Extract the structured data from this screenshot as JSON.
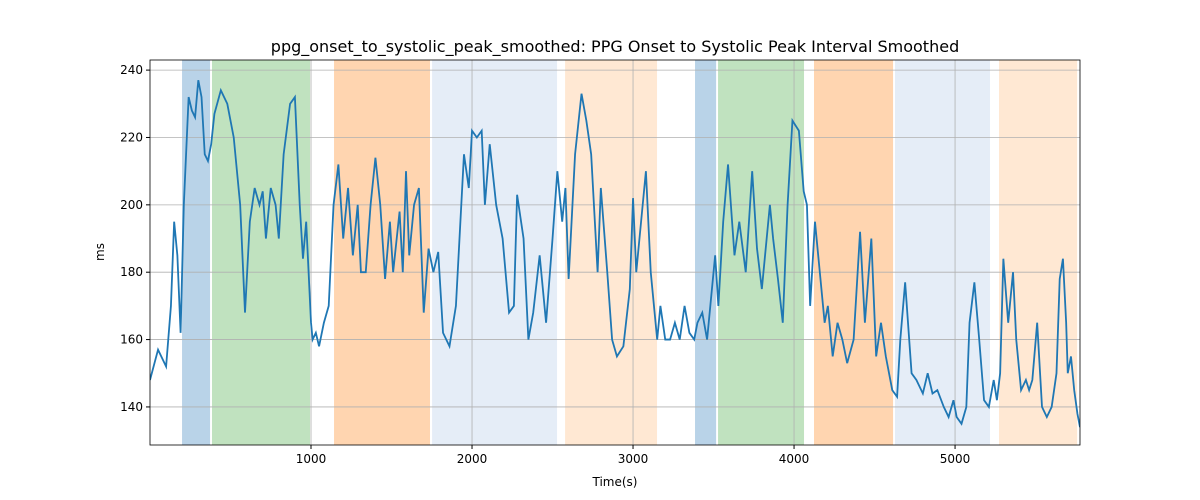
{
  "chart_data": {
    "type": "line",
    "title": "ppg_onset_to_systolic_peak_smoothed: PPG Onset to Systolic Peak Interval Smoothed",
    "x_label": "Time(s)",
    "y_label": "ms",
    "xlim": [
      0,
      5776
    ],
    "ylim": [
      128.7,
      243
    ],
    "xticks": [
      1000,
      2000,
      3000,
      4000,
      5000
    ],
    "yticks": [
      140,
      160,
      180,
      200,
      220,
      240
    ],
    "grid": true,
    "spans": [
      {
        "start": 199,
        "end": 373,
        "color": "#b9d3e8"
      },
      {
        "start": 385,
        "end": 994,
        "color": "#c0e2bf"
      },
      {
        "start": 1143,
        "end": 1739,
        "color": "#ffd5b0"
      },
      {
        "start": 1752,
        "end": 2528,
        "color": "#e5edf7"
      },
      {
        "start": 2578,
        "end": 3149,
        "color": "#ffe8d3"
      },
      {
        "start": 3385,
        "end": 3516,
        "color": "#b9d3e8"
      },
      {
        "start": 3528,
        "end": 4062,
        "color": "#c0e2bf"
      },
      {
        "start": 4124,
        "end": 4615,
        "color": "#ffd5b0"
      },
      {
        "start": 4627,
        "end": 5217,
        "color": "#e5edf7"
      },
      {
        "start": 5273,
        "end": 5758,
        "color": "#ffe8d3"
      }
    ],
    "x": [
      0,
      50,
      100,
      130,
      150,
      170,
      190,
      210,
      240,
      260,
      280,
      300,
      320,
      340,
      360,
      380,
      400,
      440,
      480,
      520,
      560,
      590,
      620,
      650,
      680,
      700,
      720,
      750,
      780,
      800,
      830,
      870,
      900,
      930,
      950,
      970,
      1000,
      1010,
      1030,
      1050,
      1080,
      1110,
      1140,
      1170,
      1200,
      1230,
      1260,
      1290,
      1310,
      1340,
      1370,
      1400,
      1430,
      1460,
      1490,
      1510,
      1550,
      1570,
      1590,
      1610,
      1640,
      1670,
      1700,
      1730,
      1760,
      1790,
      1820,
      1860,
      1900,
      1950,
      1980,
      2000,
      2030,
      2060,
      2080,
      2110,
      2150,
      2190,
      2230,
      2260,
      2280,
      2320,
      2350,
      2380,
      2420,
      2460,
      2500,
      2530,
      2560,
      2580,
      2600,
      2640,
      2680,
      2710,
      2740,
      2780,
      2800,
      2840,
      2870,
      2900,
      2940,
      2980,
      3000,
      3020,
      3050,
      3080,
      3110,
      3150,
      3170,
      3200,
      3230,
      3260,
      3290,
      3320,
      3350,
      3380,
      3400,
      3430,
      3460,
      3480,
      3510,
      3530,
      3560,
      3590,
      3630,
      3660,
      3700,
      3740,
      3770,
      3800,
      3830,
      3850,
      3870,
      3900,
      3930,
      3960,
      3990,
      4030,
      4060,
      4080,
      4100,
      4130,
      4160,
      4190,
      4210,
      4240,
      4270,
      4300,
      4330,
      4370,
      4410,
      4440,
      4480,
      4510,
      4540,
      4570,
      4610,
      4640,
      4660,
      4690,
      4730,
      4760,
      4800,
      4830,
      4860,
      4890,
      4930,
      4960,
      4990,
      5010,
      5040,
      5070,
      5090,
      5120,
      5150,
      5180,
      5210,
      5240,
      5260,
      5280,
      5300,
      5330,
      5360,
      5380,
      5410,
      5440,
      5460,
      5480,
      5510,
      5540,
      5570,
      5600,
      5630,
      5650,
      5670,
      5690,
      5700,
      5720,
      5740,
      5760,
      5776
    ],
    "series": [
      {
        "name": "ppg_onset_to_systolic_peak_smoothed",
        "color": "#1f77b4",
        "values": [
          148,
          157,
          152,
          170,
          195,
          185,
          162,
          200,
          232,
          228,
          226,
          237,
          232,
          215,
          213,
          218,
          227,
          234,
          230,
          220,
          200,
          168,
          195,
          205,
          200,
          204,
          190,
          205,
          200,
          190,
          215,
          230,
          232,
          200,
          184,
          195,
          165,
          160,
          162,
          158,
          165,
          170,
          200,
          212,
          190,
          205,
          185,
          200,
          180,
          180,
          200,
          214,
          200,
          178,
          195,
          180,
          198,
          180,
          210,
          185,
          200,
          205,
          168,
          187,
          180,
          186,
          162,
          158,
          170,
          215,
          205,
          222,
          220,
          222,
          200,
          218,
          200,
          190,
          168,
          170,
          203,
          190,
          160,
          168,
          185,
          165,
          190,
          210,
          195,
          205,
          178,
          215,
          233,
          225,
          215,
          180,
          205,
          180,
          160,
          155,
          158,
          175,
          202,
          180,
          195,
          210,
          180,
          160,
          170,
          160,
          160,
          165,
          160,
          170,
          162,
          160,
          165,
          168,
          160,
          170,
          185,
          170,
          195,
          212,
          185,
          195,
          180,
          210,
          187,
          175,
          190,
          200,
          190,
          178,
          165,
          200,
          225,
          222,
          204,
          200,
          170,
          195,
          180,
          165,
          170,
          155,
          165,
          160,
          153,
          160,
          192,
          165,
          190,
          155,
          165,
          155,
          145,
          143,
          160,
          177,
          150,
          148,
          144,
          150,
          144,
          145,
          140,
          137,
          142,
          137,
          135,
          140,
          165,
          177,
          160,
          142,
          140,
          148,
          142,
          150,
          184,
          165,
          180,
          160,
          145,
          148,
          145,
          148,
          165,
          140,
          137,
          140,
          150,
          178,
          184,
          165,
          150,
          155,
          145,
          138,
          134
        ]
      }
    ]
  }
}
